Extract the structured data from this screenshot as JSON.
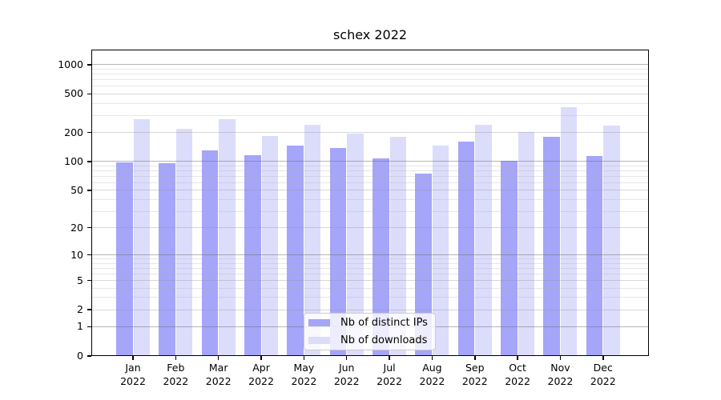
{
  "chart_data": {
    "type": "bar",
    "title": "schex 2022",
    "categories": [
      "Jan",
      "Feb",
      "Mar",
      "Apr",
      "May",
      "Jun",
      "Jul",
      "Aug",
      "Sep",
      "Oct",
      "Nov",
      "Dec"
    ],
    "year": "2022",
    "series": [
      {
        "key": "distinct-ips",
        "name": "Nb of distinct IPs",
        "color": "#a5a5fa",
        "values": [
          97,
          95,
          131,
          116,
          147,
          138,
          107,
          74,
          160,
          102,
          180,
          114
        ]
      },
      {
        "key": "downloads",
        "name": "Nb of downloads",
        "color": "#dcdcfb",
        "values": [
          275,
          220,
          273,
          183,
          241,
          196,
          179,
          145,
          238,
          203,
          364,
          234
        ]
      }
    ],
    "xlabel": "",
    "ylabel": "",
    "yscale": "log1p",
    "yticks": [
      0,
      1,
      2,
      5,
      10,
      20,
      50,
      100,
      200,
      500,
      1000
    ],
    "y_minor_gridlines": [
      3,
      4,
      6,
      7,
      8,
      9,
      30,
      40,
      60,
      70,
      80,
      90,
      300,
      400,
      600,
      700,
      800,
      900
    ],
    "ylim": [
      0,
      1430
    ],
    "grid": true,
    "legend_position": "lower center"
  }
}
